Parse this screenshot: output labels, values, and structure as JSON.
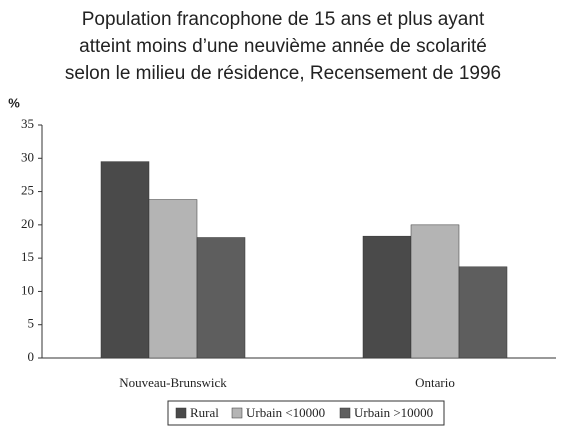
{
  "chart_data": {
    "type": "bar",
    "title": [
      "Population francophone de 15 ans et plus ayant",
      "atteint moins d’une neuvième année de scolarité",
      "selon le milieu de résidence, Recensement de 1996"
    ],
    "y_label": "%",
    "categories": [
      "Nouveau-Brunswick",
      "Ontario"
    ],
    "series": [
      {
        "name": "Rural",
        "color": "#4a4a4a",
        "values": [
          29.5,
          18.3
        ]
      },
      {
        "name": "Urbain <10000",
        "color": "#b4b4b4",
        "values": [
          23.8,
          20.0
        ]
      },
      {
        "name": "Urbain >10000",
        "color": "#5e5e5e",
        "values": [
          18.1,
          13.7
        ]
      }
    ],
    "ylim": [
      0,
      35
    ],
    "yticks": [
      0,
      5,
      10,
      15,
      20,
      25,
      30,
      35
    ],
    "grid": false,
    "legend": "bottom"
  }
}
